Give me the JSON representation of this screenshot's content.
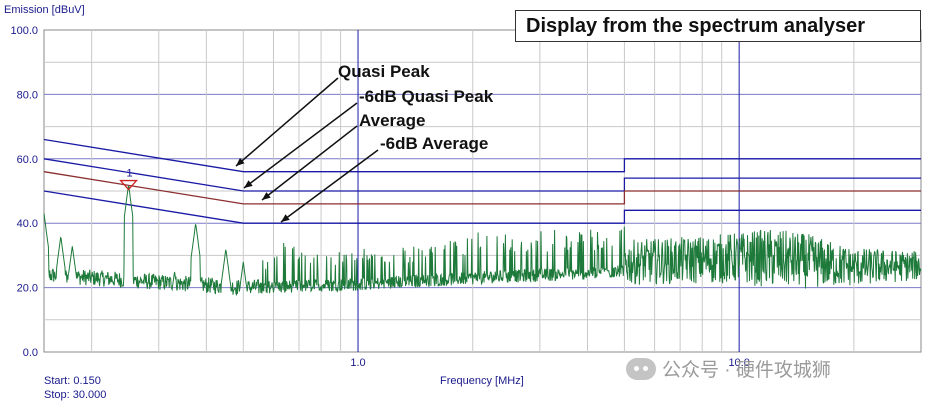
{
  "chart_data": {
    "type": "line",
    "title": "Display from the spectrum analyser",
    "ylabel": "Emission [dBuV]",
    "xlabel": "Frequency [MHz]",
    "start_label": "Start: 0.150",
    "stop_label": "Stop: 30.000",
    "x_scale": "log",
    "xlim": [
      0.15,
      30.0
    ],
    "ylim": [
      0.0,
      100.0
    ],
    "y_ticks": [
      "0.0",
      "20.0",
      "40.0",
      "60.0",
      "80.0",
      "100.0"
    ],
    "x_ticks": [
      "1.0",
      "10.0"
    ],
    "grid": true,
    "limit_lines": [
      {
        "label": "Quasi Peak",
        "color": "#1a1aa6",
        "points": [
          [
            0.15,
            66
          ],
          [
            0.5,
            56
          ],
          [
            5.0,
            56
          ],
          [
            5.0,
            60
          ],
          [
            30.0,
            60
          ]
        ]
      },
      {
        "label": "-6dB Quasi Peak",
        "color": "#1a1aa6",
        "points": [
          [
            0.15,
            60
          ],
          [
            0.5,
            50
          ],
          [
            5.0,
            50
          ],
          [
            5.0,
            54
          ],
          [
            30.0,
            54
          ]
        ]
      },
      {
        "label": "Average",
        "color": "#8b2e2e",
        "points": [
          [
            0.15,
            56
          ],
          [
            0.5,
            46
          ],
          [
            5.0,
            46
          ],
          [
            5.0,
            50
          ],
          [
            30.0,
            50
          ]
        ]
      },
      {
        "label": "-6dB Average",
        "color": "#1a1aa6",
        "points": [
          [
            0.15,
            50
          ],
          [
            0.5,
            40
          ],
          [
            5.0,
            40
          ],
          [
            5.0,
            44
          ],
          [
            30.0,
            44
          ]
        ]
      }
    ],
    "marker": {
      "label": "1",
      "x": 0.25,
      "y": 52
    },
    "series": [
      {
        "color": "#1e7a3a",
        "noise_floor": [
          [
            0.15,
            24
          ],
          [
            0.5,
            20
          ],
          [
            1.0,
            21
          ],
          [
            2.0,
            23
          ],
          [
            5.0,
            25
          ],
          [
            10.0,
            26
          ],
          [
            20.0,
            24
          ],
          [
            30.0,
            25
          ]
        ],
        "peaks": [
          [
            0.15,
            43
          ],
          [
            0.166,
            36
          ],
          [
            0.178,
            33
          ],
          [
            0.25,
            52
          ],
          [
            0.33,
            25
          ],
          [
            0.375,
            40
          ],
          [
            0.45,
            32
          ],
          [
            0.5,
            28
          ],
          [
            0.6,
            29
          ],
          [
            0.625,
            35
          ],
          [
            0.75,
            31
          ],
          [
            0.875,
            33
          ],
          [
            1.25,
            32
          ],
          [
            1.5,
            34
          ],
          [
            2.0,
            37
          ],
          [
            2.5,
            38
          ],
          [
            3.0,
            38
          ],
          [
            4.0,
            38
          ],
          [
            5.0,
            39
          ],
          [
            7.0,
            40
          ],
          [
            10.0,
            42
          ],
          [
            12.0,
            44
          ],
          [
            15.0,
            42
          ],
          [
            20.0,
            36
          ],
          [
            30.0,
            34
          ]
        ]
      }
    ]
  },
  "annotations": {
    "quasi_peak": "Quasi Peak",
    "minus6_quasi_peak": "-6dB Quasi Peak",
    "average": "Average",
    "minus6_average": "-6dB Average"
  },
  "watermark": {
    "text": "公众号 · 硬件攻城狮",
    "icon": "wechat-icon"
  },
  "colors": {
    "grid": "#1a1aa6",
    "axis_text": "#1a1a8c",
    "trace": "#1e7a3a",
    "average_line": "#8b2e2e",
    "marker": "#cc2222"
  }
}
